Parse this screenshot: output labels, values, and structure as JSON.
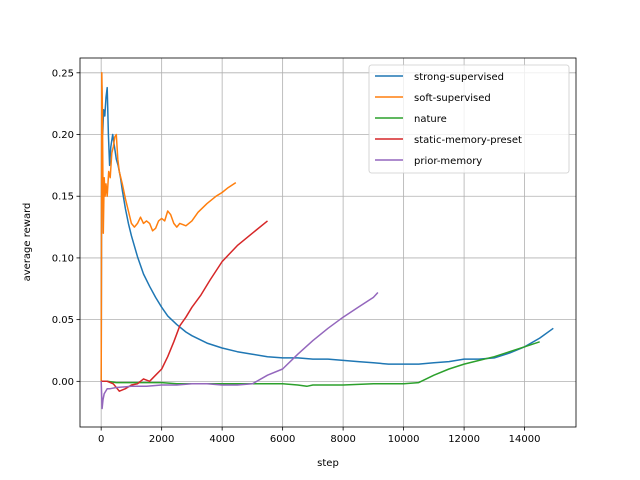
{
  "chart_data": {
    "type": "line",
    "title": "",
    "xlabel": "step",
    "ylabel": "average reward",
    "xlim": [
      -700,
      15700
    ],
    "ylim": [
      -0.037,
      0.262
    ],
    "xticks": [
      0,
      2000,
      4000,
      6000,
      8000,
      10000,
      12000,
      14000
    ],
    "yticks": [
      0.0,
      0.05,
      0.1,
      0.15,
      0.2,
      0.25
    ],
    "xtick_labels": [
      "0",
      "2000",
      "4000",
      "6000",
      "8000",
      "10000",
      "12000",
      "14000"
    ],
    "ytick_labels": [
      "0.00",
      "0.05",
      "0.10",
      "0.15",
      "0.20",
      "0.25"
    ],
    "grid": true,
    "legend_position": "top-right",
    "series": [
      {
        "name": "strong-supervised",
        "color": "#1f77b4",
        "x": [
          0,
          20,
          50,
          80,
          120,
          160,
          200,
          240,
          280,
          320,
          380,
          440,
          500,
          560,
          640,
          700,
          800,
          900,
          1000,
          1200,
          1400,
          1600,
          1800,
          2000,
          2200,
          2500,
          2800,
          3000,
          3500,
          4000,
          4500,
          5000,
          5500,
          6000,
          6500,
          7000,
          7500,
          8000,
          8500,
          9000,
          9500,
          10000,
          10500,
          11000,
          11500,
          12000,
          12500,
          13000,
          13500,
          14000,
          14500,
          14950
        ],
        "y": [
          0.0,
          0.24,
          0.2,
          0.22,
          0.215,
          0.23,
          0.238,
          0.2,
          0.175,
          0.19,
          0.2,
          0.19,
          0.18,
          0.175,
          0.165,
          0.155,
          0.14,
          0.128,
          0.118,
          0.101,
          0.087,
          0.077,
          0.068,
          0.06,
          0.053,
          0.046,
          0.04,
          0.037,
          0.031,
          0.027,
          0.024,
          0.022,
          0.02,
          0.019,
          0.019,
          0.018,
          0.018,
          0.017,
          0.016,
          0.015,
          0.014,
          0.014,
          0.014,
          0.015,
          0.016,
          0.018,
          0.018,
          0.019,
          0.023,
          0.028,
          0.035,
          0.043
        ]
      },
      {
        "name": "soft-supervised",
        "color": "#ff7f0e",
        "x": [
          0,
          20,
          40,
          70,
          100,
          130,
          160,
          200,
          250,
          300,
          350,
          400,
          450,
          500,
          550,
          600,
          700,
          800,
          900,
          1000,
          1100,
          1200,
          1300,
          1400,
          1500,
          1600,
          1700,
          1800,
          1900,
          2000,
          2100,
          2200,
          2300,
          2400,
          2500,
          2600,
          2700,
          2800,
          3000,
          3200,
          3500,
          3800,
          4000,
          4200,
          4450
        ],
        "y": [
          0.0,
          0.25,
          0.22,
          0.12,
          0.165,
          0.15,
          0.16,
          0.15,
          0.17,
          0.165,
          0.185,
          0.19,
          0.198,
          0.2,
          0.18,
          0.17,
          0.16,
          0.148,
          0.138,
          0.128,
          0.125,
          0.128,
          0.133,
          0.128,
          0.13,
          0.128,
          0.122,
          0.124,
          0.13,
          0.132,
          0.13,
          0.138,
          0.135,
          0.128,
          0.125,
          0.128,
          0.127,
          0.126,
          0.13,
          0.137,
          0.144,
          0.15,
          0.153,
          0.157,
          0.161
        ]
      },
      {
        "name": "nature",
        "color": "#2ca02c",
        "x": [
          0,
          200,
          500,
          1000,
          1500,
          2000,
          2500,
          3000,
          3500,
          4000,
          5000,
          6000,
          6500,
          6800,
          7000,
          7500,
          8000,
          9000,
          10000,
          10500,
          11000,
          11500,
          12000,
          12500,
          13000,
          13500,
          14000,
          14500
        ],
        "y": [
          0.0,
          0.0,
          -0.001,
          -0.001,
          -0.001,
          -0.001,
          -0.002,
          -0.002,
          -0.002,
          -0.002,
          -0.002,
          -0.002,
          -0.003,
          -0.004,
          -0.003,
          -0.003,
          -0.003,
          -0.002,
          -0.002,
          -0.001,
          0.005,
          0.01,
          0.014,
          0.017,
          0.02,
          0.024,
          0.028,
          0.032
        ]
      },
      {
        "name": "static-memory-preset",
        "color": "#d62728",
        "x": [
          0,
          200,
          400,
          600,
          800,
          1000,
          1200,
          1400,
          1600,
          1800,
          2000,
          2200,
          2400,
          2600,
          2800,
          3000,
          3300,
          3600,
          4000,
          4500,
          5000,
          5500
        ],
        "y": [
          0.0,
          0.0,
          -0.002,
          -0.008,
          -0.006,
          -0.003,
          -0.002,
          0.002,
          0.0,
          0.005,
          0.01,
          0.02,
          0.032,
          0.045,
          0.052,
          0.06,
          0.07,
          0.082,
          0.097,
          0.11,
          0.12,
          0.13
        ]
      },
      {
        "name": "prior-memory",
        "color": "#9467bd",
        "x": [
          0,
          30,
          60,
          100,
          150,
          200,
          300,
          500,
          1000,
          1500,
          2000,
          2500,
          3000,
          3500,
          4000,
          4500,
          5000,
          5500,
          6000,
          6500,
          7000,
          7500,
          8000,
          8500,
          9000,
          9150
        ],
        "y": [
          0.0,
          -0.022,
          -0.015,
          -0.01,
          -0.008,
          -0.006,
          -0.006,
          -0.005,
          -0.004,
          -0.004,
          -0.003,
          -0.003,
          -0.002,
          -0.002,
          -0.003,
          -0.003,
          -0.002,
          0.005,
          0.01,
          0.022,
          0.033,
          0.043,
          0.052,
          0.06,
          0.068,
          0.072
        ]
      }
    ]
  }
}
